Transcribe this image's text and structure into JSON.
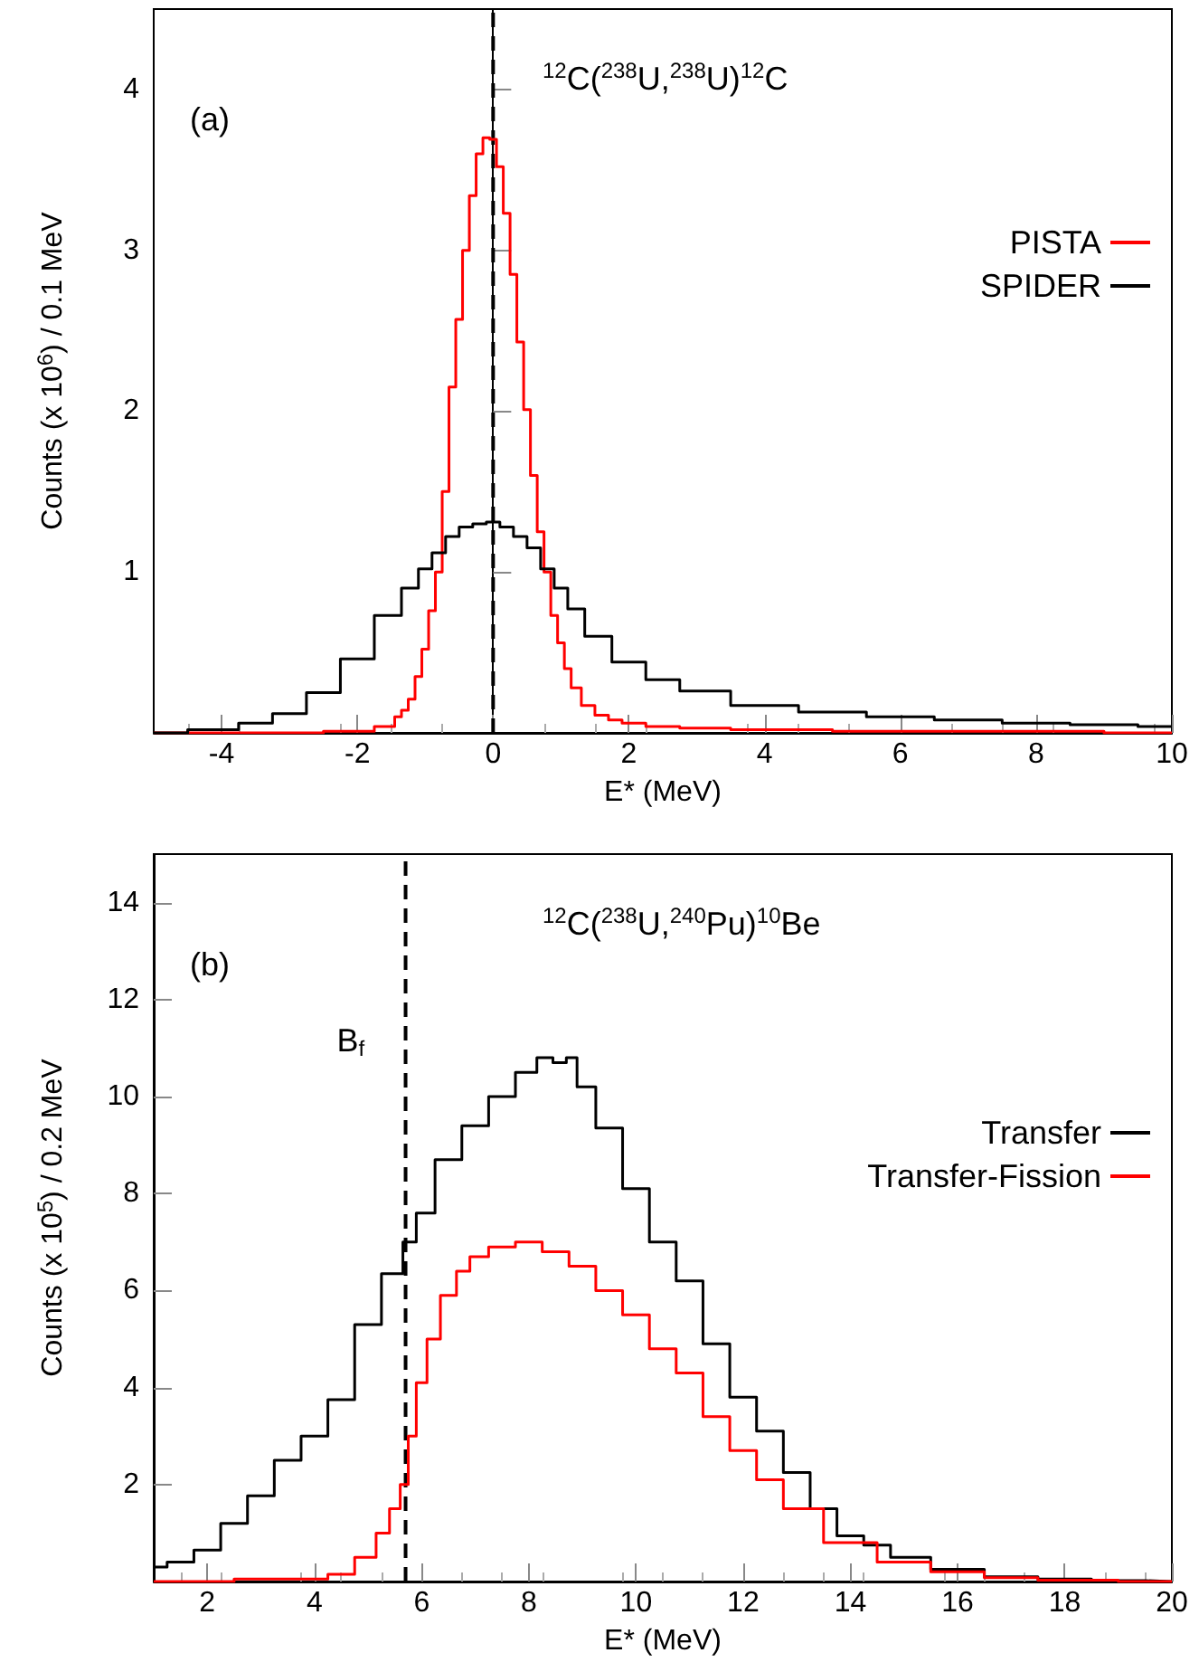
{
  "chart_data": [
    {
      "type": "step",
      "xlabel": "E* (MeV)",
      "ylabel": "Counts (x 10$^{6}$) / 0.1 MeV",
      "annotations": [
        "(a)",
        "$^{12}$C($^{238}$U,$^{238}$U)$^{12}$C"
      ],
      "xlim": [
        -5,
        10
      ],
      "ylim": [
        0,
        4.5
      ],
      "xticks": [
        -4,
        -2,
        0,
        2,
        4,
        6,
        8,
        10
      ],
      "yticks": [
        1,
        2,
        3,
        4
      ],
      "legend": "right",
      "grid": false,
      "ref_lines": [
        {
          "axis": "x",
          "value": 0,
          "color": "#000000",
          "line_style": "dashed"
        }
      ],
      "series": [
        {
          "name": "PISTA",
          "color": "#ff0000",
          "x": [
            -5,
            -3,
            -2,
            -1.5,
            -1.4,
            -1.3,
            -1.2,
            -1.1,
            -1.0,
            -0.9,
            -0.8,
            -0.7,
            -0.6,
            -0.5,
            -0.4,
            -0.3,
            -0.2,
            -0.1,
            0,
            0.1,
            0.2,
            0.3,
            0.4,
            0.5,
            0.6,
            0.7,
            0.8,
            0.9,
            1.0,
            1.1,
            1.2,
            1.4,
            1.6,
            1.8,
            2.0,
            2.5,
            3,
            4,
            6,
            8,
            10
          ],
          "values": [
            0,
            0,
            0.01,
            0.04,
            0.1,
            0.14,
            0.21,
            0.35,
            0.52,
            0.76,
            1.0,
            1.5,
            2.15,
            2.57,
            3.0,
            3.34,
            3.6,
            3.7,
            3.69,
            3.52,
            3.23,
            2.85,
            2.43,
            2.01,
            1.6,
            1.25,
            1.0,
            0.73,
            0.56,
            0.4,
            0.28,
            0.17,
            0.11,
            0.08,
            0.06,
            0.04,
            0.03,
            0.02,
            0.01,
            0.01,
            0
          ]
        },
        {
          "name": "SPIDER",
          "color": "#000000",
          "x": [
            -5,
            -4,
            -3.5,
            -3,
            -2.5,
            -2,
            -1.5,
            -1.2,
            -1,
            -0.8,
            -0.6,
            -0.4,
            -0.2,
            0,
            0.2,
            0.4,
            0.6,
            0.8,
            1.0,
            1.2,
            1.5,
            2,
            2.5,
            3,
            4,
            5,
            6,
            7,
            8,
            9,
            10
          ],
          "values": [
            0,
            0.02,
            0.06,
            0.12,
            0.25,
            0.46,
            0.73,
            0.9,
            1.02,
            1.12,
            1.22,
            1.28,
            1.3,
            1.31,
            1.28,
            1.22,
            1.15,
            1.02,
            0.9,
            0.77,
            0.6,
            0.44,
            0.33,
            0.26,
            0.17,
            0.13,
            0.1,
            0.08,
            0.06,
            0.05,
            0.04
          ]
        }
      ]
    },
    {
      "type": "step",
      "xlabel": "E* (MeV)",
      "ylabel": "Counts (x 10$^{5}$) / 0.2 MeV",
      "annotations": [
        "(b)",
        "$^{12}$C($^{238}$U,$^{240}$Pu)$^{10}$Be"
      ],
      "xlim": [
        1,
        20
      ],
      "ylim": [
        0,
        15
      ],
      "xticks": [
        2,
        4,
        6,
        8,
        10,
        12,
        14,
        16,
        18,
        20
      ],
      "yticks": [
        2,
        4,
        6,
        8,
        10,
        12,
        14
      ],
      "legend": "right",
      "grid": false,
      "ref_lines": [
        {
          "axis": "x",
          "value": 5.7,
          "label": "B$_{f}$",
          "color": "#000000",
          "line_style": "dashed"
        }
      ],
      "series": [
        {
          "name": "Transfer",
          "color": "#000000",
          "x": [
            1,
            1.5,
            2,
            2.5,
            3,
            3.5,
            4,
            4.5,
            5,
            5.5,
            5.8,
            6,
            6.5,
            7,
            7.5,
            8,
            8.3,
            8.6,
            8.8,
            9,
            9.5,
            10,
            10.5,
            11,
            11.5,
            12,
            12.5,
            13,
            13.5,
            14,
            14.5,
            15,
            16,
            17,
            18,
            19,
            20
          ],
          "values": [
            0.3,
            0.4,
            0.65,
            1.2,
            1.77,
            2.5,
            3.0,
            3.75,
            5.3,
            6.35,
            7.0,
            7.6,
            8.7,
            9.4,
            10.0,
            10.5,
            10.8,
            10.7,
            10.8,
            10.2,
            9.35,
            8.1,
            7.0,
            6.2,
            4.9,
            3.8,
            3.1,
            2.25,
            1.5,
            0.94,
            0.75,
            0.5,
            0.25,
            0.1,
            0.05,
            0.02,
            0
          ]
        },
        {
          "name": "Transfer-Fission",
          "color": "#ff0000",
          "x": [
            1,
            4,
            4.5,
            5,
            5.3,
            5.5,
            5.7,
            5.8,
            6,
            6.2,
            6.5,
            6.8,
            7,
            7.5,
            8,
            8.5,
            9,
            9.5,
            10,
            10.5,
            11,
            11.5,
            12,
            12.5,
            13,
            14,
            15,
            16,
            17,
            18,
            20
          ],
          "values": [
            0,
            0.05,
            0.15,
            0.5,
            1.0,
            1.5,
            2.0,
            3.0,
            4.1,
            5.0,
            5.9,
            6.4,
            6.7,
            6.9,
            7.0,
            6.8,
            6.5,
            6.0,
            5.5,
            4.8,
            4.3,
            3.4,
            2.7,
            2.1,
            1.5,
            0.8,
            0.4,
            0.2,
            0.08,
            0.03,
            0
          ]
        }
      ]
    }
  ]
}
